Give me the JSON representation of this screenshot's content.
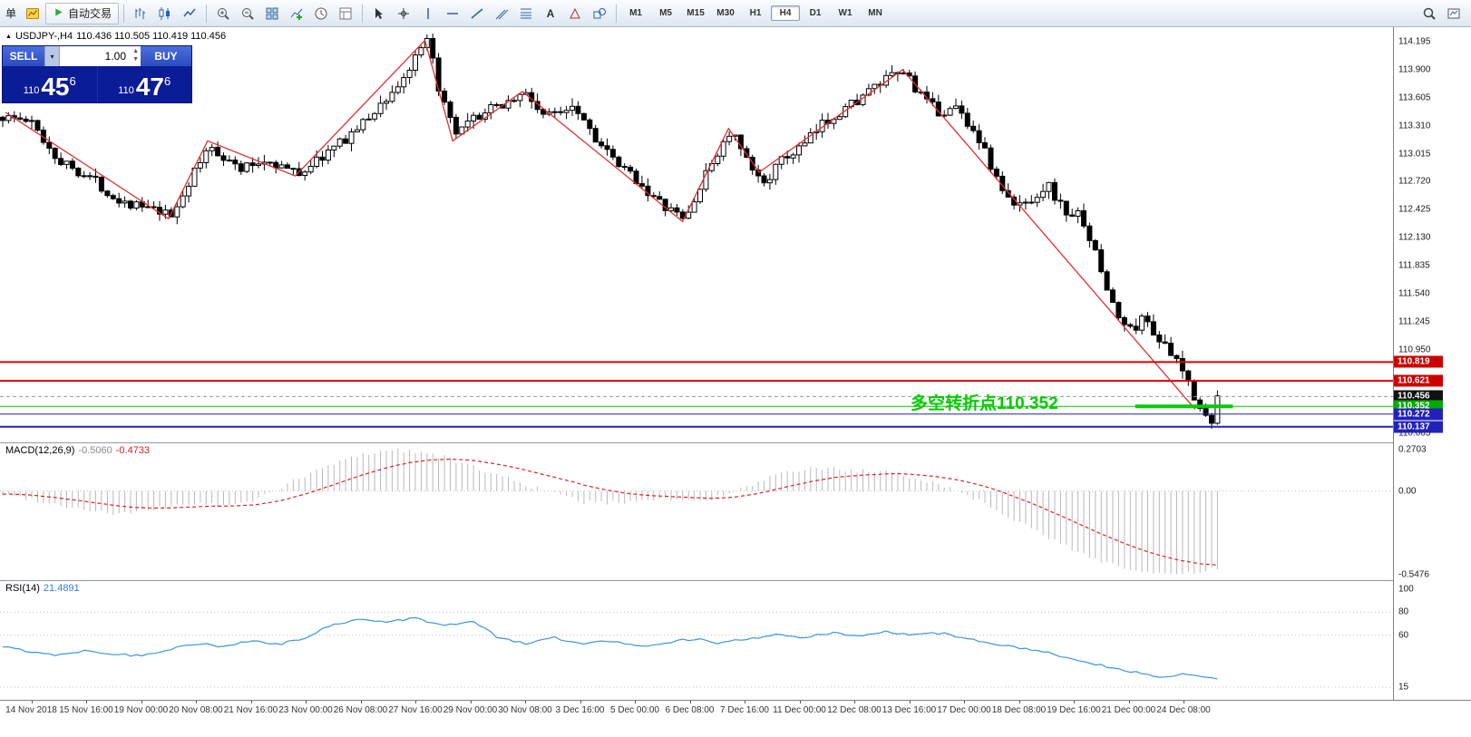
{
  "toolbar": {
    "menu_stub": "单",
    "autotrade_label": "自动交易",
    "left_icons": [
      "new-order"
    ],
    "chart_icons": [
      "bar-chart",
      "candlestick-chart",
      "line-chart"
    ],
    "zoom_icons": [
      "zoom-in",
      "zoom-out"
    ],
    "window_icons": [
      "tile-windows",
      "add-indicator",
      "clock",
      "templates"
    ],
    "drawing_icons": [
      "cursor",
      "crosshair",
      "vertical-line",
      "horizontal-line",
      "trendline",
      "channel",
      "fibonacci",
      "text",
      "arrow-label",
      "shapes"
    ],
    "timeframes": [
      {
        "label": "M1",
        "active": false
      },
      {
        "label": "M5",
        "active": false
      },
      {
        "label": "M15",
        "active": false
      },
      {
        "label": "M30",
        "active": false
      },
      {
        "label": "H1",
        "active": false
      },
      {
        "label": "H4",
        "active": true
      },
      {
        "label": "D1",
        "active": false
      },
      {
        "label": "W1",
        "active": false
      },
      {
        "label": "MN",
        "active": false
      }
    ],
    "right_icons": [
      "search",
      "new-chart"
    ]
  },
  "trade_panel": {
    "sell_label": "SELL",
    "buy_label": "BUY",
    "volume": "1.00",
    "sell_price": {
      "prefix": "110",
      "big": "45",
      "sup": "6"
    },
    "buy_price": {
      "prefix": "110",
      "big": "47",
      "sup": "6"
    }
  },
  "chart": {
    "symbol_title": "USDJPY-,H4",
    "ohlc_text": "110.436 110.505 110.419 110.456",
    "annotation_text": "多空转折点110.352"
  },
  "colors": {
    "zigzag_red": "#e03030",
    "annotation_green": "#00cc00",
    "macd_signal": "#dd2222",
    "macd_histogram": "#b9b9b9",
    "rsi_line": "#3b95e0",
    "trade_panel_bg": "#0a1c96",
    "buy_sell_button": "#3a5fd9",
    "resistance_red": "#dd0000",
    "support_blue": "#2222bb",
    "candle_up": "#ffffff",
    "candle_down": "#000000"
  },
  "chart_data": {
    "type": "candlestick",
    "symbol": "USDJPY-",
    "timeframe": "H4",
    "current": {
      "open": 110.436,
      "high": 110.505,
      "low": 110.419,
      "close": 110.456
    },
    "price_range": [
      110.03,
      114.31
    ],
    "y_axis_labels": [
      "114.195",
      "113.900",
      "113.605",
      "113.310",
      "113.015",
      "112.720",
      "112.425",
      "112.130",
      "111.835",
      "111.540",
      "111.245",
      "110.950",
      "110.065"
    ],
    "candle_count": 210,
    "plot_right_frac": 0.872,
    "price_path": [
      [
        0.005,
        113.4
      ],
      [
        0.02,
        113.35
      ],
      [
        0.04,
        112.95
      ],
      [
        0.065,
        112.75
      ],
      [
        0.08,
        112.55
      ],
      [
        0.1,
        112.45
      ],
      [
        0.121,
        112.35
      ],
      [
        0.135,
        112.75
      ],
      [
        0.149,
        113.1
      ],
      [
        0.17,
        112.85
      ],
      [
        0.19,
        112.95
      ],
      [
        0.212,
        112.8
      ],
      [
        0.24,
        113.1
      ],
      [
        0.26,
        113.35
      ],
      [
        0.285,
        113.75
      ],
      [
        0.305,
        114.2
      ],
      [
        0.315,
        113.6
      ],
      [
        0.325,
        113.2
      ],
      [
        0.34,
        113.4
      ],
      [
        0.36,
        113.55
      ],
      [
        0.375,
        113.65
      ],
      [
        0.39,
        113.4
      ],
      [
        0.41,
        113.55
      ],
      [
        0.425,
        113.2
      ],
      [
        0.44,
        112.9
      ],
      [
        0.455,
        112.75
      ],
      [
        0.47,
        112.5
      ],
      [
        0.49,
        112.32
      ],
      [
        0.51,
        112.95
      ],
      [
        0.523,
        113.25
      ],
      [
        0.535,
        112.9
      ],
      [
        0.545,
        112.7
      ],
      [
        0.56,
        112.95
      ],
      [
        0.575,
        113.1
      ],
      [
        0.59,
        113.35
      ],
      [
        0.605,
        113.5
      ],
      [
        0.62,
        113.65
      ],
      [
        0.635,
        113.8
      ],
      [
        0.648,
        113.88
      ],
      [
        0.66,
        113.6
      ],
      [
        0.672,
        113.45
      ],
      [
        0.685,
        113.5
      ],
      [
        0.7,
        113.2
      ],
      [
        0.715,
        112.7
      ],
      [
        0.725,
        112.45
      ],
      [
        0.74,
        112.55
      ],
      [
        0.75,
        112.7
      ],
      [
        0.762,
        112.4
      ],
      [
        0.775,
        112.35
      ],
      [
        0.788,
        111.8
      ],
      [
        0.8,
        111.3
      ],
      [
        0.81,
        111.15
      ],
      [
        0.82,
        111.3
      ],
      [
        0.828,
        111.1
      ],
      [
        0.838,
        110.9
      ],
      [
        0.848,
        110.7
      ],
      [
        0.856,
        110.45
      ],
      [
        0.862,
        110.3
      ],
      [
        0.868,
        110.15
      ],
      [
        0.872,
        110.46
      ]
    ],
    "zigzag": [
      [
        0.004,
        113.45
      ],
      [
        0.121,
        112.33
      ],
      [
        0.149,
        113.15
      ],
      [
        0.212,
        112.78
      ],
      [
        0.305,
        114.21
      ],
      [
        0.325,
        113.15
      ],
      [
        0.375,
        113.67
      ],
      [
        0.49,
        112.3
      ],
      [
        0.523,
        113.28
      ],
      [
        0.545,
        112.82
      ],
      [
        0.648,
        113.9
      ],
      [
        0.858,
        110.32
      ]
    ],
    "hlines": [
      {
        "price": 110.819,
        "color": "#dd0000",
        "width": 2,
        "tag": "110.819",
        "tag_color": "#cc0000"
      },
      {
        "price": 110.621,
        "color": "#dd0000",
        "width": 2,
        "tag": "110.621",
        "tag_color": "#cc0000"
      },
      {
        "price": 110.456,
        "color": "#999999",
        "width": 1,
        "dash": true,
        "tag": "110.456",
        "tag_color": "#111111"
      },
      {
        "price": 110.352,
        "color": "#00cc00",
        "width": 1,
        "tag": "110.352",
        "tag_color": "#00aa00",
        "bold_segment": [
          0.815,
          0.885
        ],
        "bold_width": 4
      },
      {
        "price": 110.272,
        "color": "#2222bb",
        "width": 1,
        "tag": "110.272",
        "tag_color": "#2222bb"
      },
      {
        "price": 110.137,
        "color": "#2222bb",
        "width": 2,
        "tag": "110.137",
        "tag_color": "#2222bb"
      }
    ],
    "x_labels": [
      "14 Nov 2018",
      "15 Nov 16:00",
      "19 Nov 00:00",
      "20 Nov 08:00",
      "21 Nov 16:00",
      "23 Nov 00:00",
      "26 Nov 08:00",
      "27 Nov 16:00",
      "29 Nov 00:00",
      "30 Nov 08:00",
      "3 Dec 16:00",
      "5 Dec 00:00",
      "6 Dec 08:00",
      "7 Dec 16:00",
      "11 Dec 00:00",
      "12 Dec 08:00",
      "13 Dec 16:00",
      "17 Dec 00:00",
      "18 Dec 08:00",
      "19 Dec 16:00",
      "21 Dec 00:00",
      "24 Dec 08:00"
    ],
    "indicators": [
      {
        "name": "MACD",
        "label": "MACD(12,26,9)",
        "value_main": "-0.5060",
        "value_signal": "-0.4733",
        "axis_labels": [
          "0.2703",
          "0.00",
          "-0.5476"
        ],
        "range": [
          -0.5476,
          0.2703
        ],
        "samples": [
          -0.02,
          -0.05,
          -0.09,
          -0.12,
          -0.15,
          -0.14,
          -0.1,
          -0.08,
          -0.1,
          -0.07,
          0.02,
          0.1,
          0.18,
          0.24,
          0.27,
          0.26,
          0.22,
          0.16,
          0.1,
          0.04,
          -0.02,
          -0.07,
          -0.08,
          -0.06,
          -0.05,
          -0.07,
          -0.04,
          0.03,
          0.1,
          0.14,
          0.15,
          0.13,
          0.12,
          0.09,
          0.04,
          -0.03,
          -0.12,
          -0.22,
          -0.32,
          -0.4,
          -0.47,
          -0.52,
          -0.55,
          -0.54,
          -0.51
        ]
      },
      {
        "name": "RSI",
        "label": "RSI(14)",
        "value": "21.4891",
        "levels": [
          80,
          60,
          15
        ],
        "axis_labels": [
          "100",
          "80",
          "60",
          "15"
        ],
        "range": [
          0,
          100
        ],
        "samples": [
          50,
          46,
          43,
          47,
          44,
          42,
          48,
          53,
          50,
          55,
          52,
          58,
          70,
          74,
          72,
          75,
          68,
          73,
          57,
          53,
          58,
          52,
          56,
          50,
          54,
          57,
          53,
          57,
          60,
          58,
          62,
          60,
          63,
          60,
          62,
          57,
          52,
          48,
          44,
          38,
          33,
          28,
          24,
          27,
          21.5
        ]
      }
    ]
  }
}
